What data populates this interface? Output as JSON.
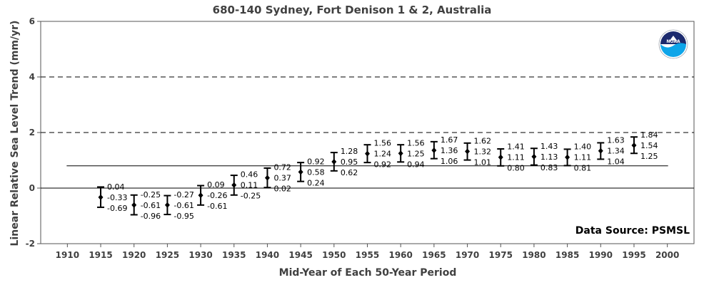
{
  "chart_data": {
    "type": "scatter",
    "title": "680-140 Sydney, Fort Denison 1 & 2, Australia",
    "xlabel": "Mid-Year of Each 50-Year Period",
    "ylabel": "Linear Relative Sea Level Trend (mm/yr)",
    "xlim": [
      1906,
      2004
    ],
    "ylim": [
      -2,
      6
    ],
    "x_ticks": [
      1910,
      1915,
      1920,
      1925,
      1930,
      1935,
      1940,
      1945,
      1950,
      1955,
      1960,
      1965,
      1970,
      1975,
      1980,
      1985,
      1990,
      1995,
      2000
    ],
    "y_ticks": [
      -2,
      0,
      2,
      4,
      6
    ],
    "dashed_gridlines": [
      2,
      4
    ],
    "zero_line": 0,
    "reference_line": {
      "y": 0.8,
      "x_start": 1910,
      "x_end": 2000
    },
    "source_text": "Data Source: PSMSL",
    "logo": {
      "text": "NOAA",
      "colors": [
        "#1c2a6e",
        "#0ea5e9"
      ]
    },
    "points": [
      {
        "x": 1915,
        "trend": -0.33,
        "upper": 0.04,
        "lower": -0.69,
        "labels": [
          "0.04",
          "-0.33",
          "-0.69"
        ]
      },
      {
        "x": 1920,
        "trend": -0.61,
        "upper": -0.25,
        "lower": -0.96,
        "labels": [
          "-0.25",
          "-0.61",
          "-0.96"
        ]
      },
      {
        "x": 1925,
        "trend": -0.61,
        "upper": -0.27,
        "lower": -0.95,
        "labels": [
          "-0.27",
          "-0.61",
          "-0.95"
        ]
      },
      {
        "x": 1930,
        "trend": -0.26,
        "upper": 0.09,
        "lower": -0.61,
        "labels": [
          "0.09",
          "-0.26",
          "-0.61"
        ]
      },
      {
        "x": 1935,
        "trend": 0.11,
        "upper": 0.46,
        "lower": -0.25,
        "labels": [
          "0.46",
          "0.11",
          "-0.25"
        ]
      },
      {
        "x": 1940,
        "trend": 0.37,
        "upper": 0.72,
        "lower": 0.02,
        "labels": [
          "0.72",
          "0.37",
          "0.02"
        ]
      },
      {
        "x": 1945,
        "trend": 0.58,
        "upper": 0.92,
        "lower": 0.24,
        "labels": [
          "0.92",
          "0.58",
          "0.24"
        ]
      },
      {
        "x": 1950,
        "trend": 0.95,
        "upper": 1.28,
        "lower": 0.62,
        "labels": [
          "1.28",
          "0.95",
          "0.62"
        ]
      },
      {
        "x": 1955,
        "trend": 1.24,
        "upper": 1.56,
        "lower": 0.92,
        "labels": [
          "1.56",
          "1.24",
          "0.92"
        ]
      },
      {
        "x": 1960,
        "trend": 1.25,
        "upper": 1.56,
        "lower": 0.94,
        "labels": [
          "1.56",
          "1.25",
          "0.94"
        ]
      },
      {
        "x": 1965,
        "trend": 1.36,
        "upper": 1.67,
        "lower": 1.06,
        "labels": [
          "1.67",
          "1.36",
          "1.06"
        ]
      },
      {
        "x": 1970,
        "trend": 1.32,
        "upper": 1.62,
        "lower": 1.01,
        "labels": [
          "1.62",
          "1.32",
          "1.01"
        ]
      },
      {
        "x": 1975,
        "trend": 1.11,
        "upper": 1.41,
        "lower": 0.8,
        "labels": [
          "1.41",
          "1.11",
          "0.80"
        ]
      },
      {
        "x": 1980,
        "trend": 1.13,
        "upper": 1.43,
        "lower": 0.83,
        "labels": [
          "1.43",
          "1.13",
          "0.83"
        ]
      },
      {
        "x": 1985,
        "trend": 1.11,
        "upper": 1.4,
        "lower": 0.81,
        "labels": [
          "1.40",
          "1.11",
          "0.81"
        ]
      },
      {
        "x": 1990,
        "trend": 1.34,
        "upper": 1.63,
        "lower": 1.04,
        "labels": [
          "1.63",
          "1.34",
          "1.04"
        ]
      },
      {
        "x": 1995,
        "trend": 1.54,
        "upper": 1.84,
        "lower": 1.25,
        "labels": [
          "1.84",
          "1.54",
          "1.25"
        ]
      }
    ]
  }
}
